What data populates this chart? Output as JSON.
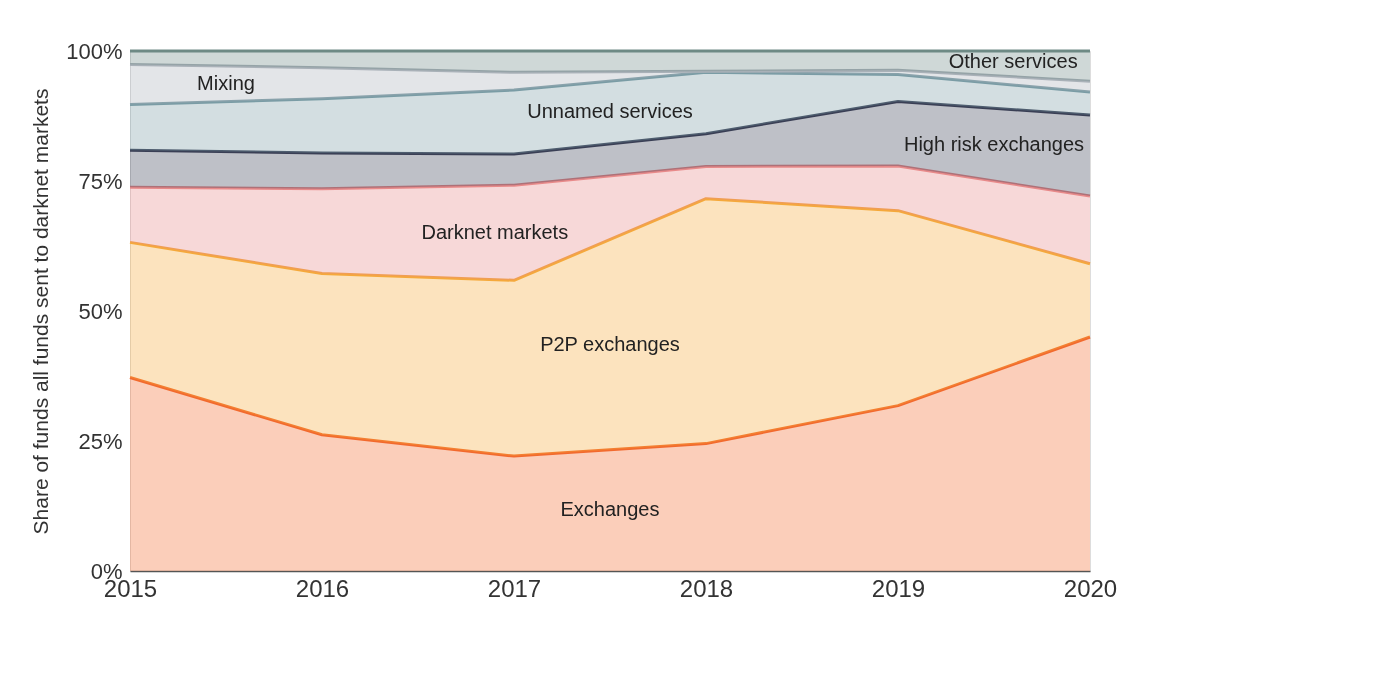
{
  "chart_data": {
    "type": "area",
    "stacked": true,
    "ylabel": "Share of funds all funds sent to darknet markets",
    "x": [
      2015,
      2016,
      2017,
      2018,
      2019,
      2020
    ],
    "xlim": [
      2015,
      2020
    ],
    "xticks": [
      2015,
      2016,
      2017,
      2018,
      2019,
      2020
    ],
    "ylim": [
      0,
      100
    ],
    "yticks": [
      {
        "value": 0,
        "label": "0%"
      },
      {
        "value": 25,
        "label": "25%"
      },
      {
        "value": 50,
        "label": "50%"
      },
      {
        "value": 75,
        "label": "75%"
      },
      {
        "value": 100,
        "label": "100%"
      }
    ],
    "grid": false,
    "series": [
      {
        "name": "Exchanges",
        "color": "#f26a2e",
        "values": [
          37.2,
          26.2,
          22.1,
          24.5,
          31.8,
          45.0
        ]
      },
      {
        "name": "P2P exchanges",
        "color": "#f5a93b",
        "values": [
          26.0,
          31.0,
          33.8,
          47.1,
          37.5,
          14.1
        ]
      },
      {
        "name": "Darknet markets",
        "color": "#e88a8a",
        "values": [
          10.6,
          16.3,
          18.3,
          6.2,
          8.6,
          13.0
        ]
      },
      {
        "name": "High risk exchanges",
        "color": "#3a3f55",
        "values": [
          7.1,
          6.9,
          6.0,
          6.3,
          12.4,
          15.6
        ]
      },
      {
        "name": "Unnamed services",
        "color": "#7a9ca5",
        "values": [
          8.8,
          10.4,
          12.3,
          11.8,
          5.2,
          4.4
        ]
      },
      {
        "name": "Mixing",
        "color": "#a9b1b8",
        "values": [
          7.7,
          6.0,
          3.4,
          0.2,
          0.8,
          2.1
        ]
      },
      {
        "name": "Other services",
        "color": "#6e8a85",
        "values": [
          2.6,
          3.2,
          4.1,
          3.9,
          3.7,
          5.8
        ]
      }
    ]
  }
}
